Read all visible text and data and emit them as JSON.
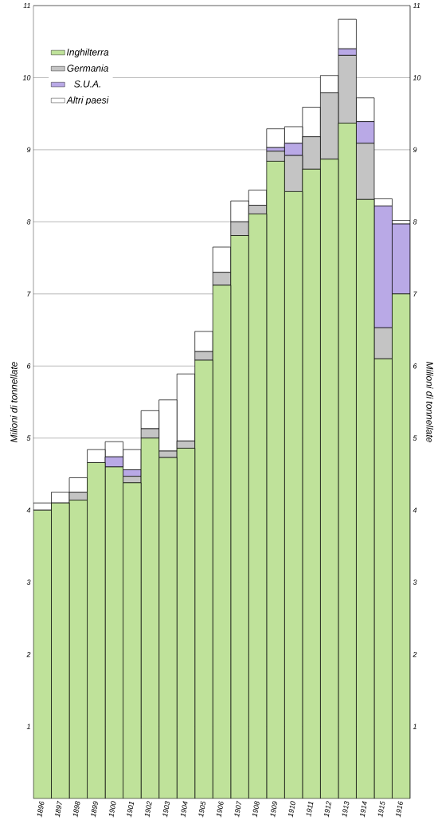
{
  "chart_data": {
    "type": "bar",
    "stacked": true,
    "ylabel": "Milioni di tonnellate",
    "y2label": "Milioni di tonnellate",
    "categories": [
      "1896",
      "1897",
      "1898",
      "1899",
      "1900",
      "1901",
      "1902",
      "1903",
      "1904",
      "1905",
      "1906",
      "1907",
      "1908",
      "1909",
      "1910",
      "1911",
      "1912",
      "1913",
      "1914",
      "1915",
      "1916"
    ],
    "series": [
      {
        "name": "Inghilterra",
        "color": "#bfe29a",
        "values": [
          4.0,
          4.1,
          4.14,
          4.66,
          4.6,
          4.38,
          5.0,
          4.73,
          4.86,
          6.08,
          7.12,
          7.81,
          8.11,
          8.84,
          8.42,
          8.73,
          8.87,
          9.37,
          8.31,
          6.1,
          7.0
        ]
      },
      {
        "name": "Germania",
        "color": "#c4c4c4",
        "values": [
          null,
          null,
          0.11,
          null,
          null,
          0.09,
          0.13,
          0.09,
          0.1,
          0.12,
          0.18,
          0.19,
          0.12,
          0.14,
          0.5,
          0.45,
          0.92,
          0.94,
          0.78,
          0.43,
          null
        ]
      },
      {
        "name": "S.U.A.",
        "color": "#b9a9e6",
        "values": [
          null,
          null,
          null,
          null,
          0.14,
          0.09,
          null,
          null,
          null,
          null,
          null,
          null,
          null,
          0.05,
          0.17,
          null,
          null,
          0.09,
          0.3,
          1.69,
          0.97
        ]
      },
      {
        "name": "Altri paesi",
        "color": "#ffffff",
        "values": [
          0.1,
          0.15,
          0.2,
          0.18,
          0.21,
          0.28,
          0.25,
          0.71,
          0.93,
          0.28,
          0.35,
          0.29,
          0.21,
          0.26,
          0.23,
          0.41,
          0.24,
          0.41,
          0.33,
          0.1,
          0.05
        ]
      }
    ],
    "ylim": [
      0,
      11
    ],
    "yticks": [
      1,
      2,
      3,
      4,
      5,
      6,
      7,
      8,
      9,
      10,
      11
    ],
    "y2lim": [
      0,
      11
    ],
    "y2ticks": [
      1,
      2,
      3,
      4,
      5,
      6,
      7,
      8,
      9,
      10,
      11
    ],
    "grid": "y",
    "legend": "top left"
  }
}
